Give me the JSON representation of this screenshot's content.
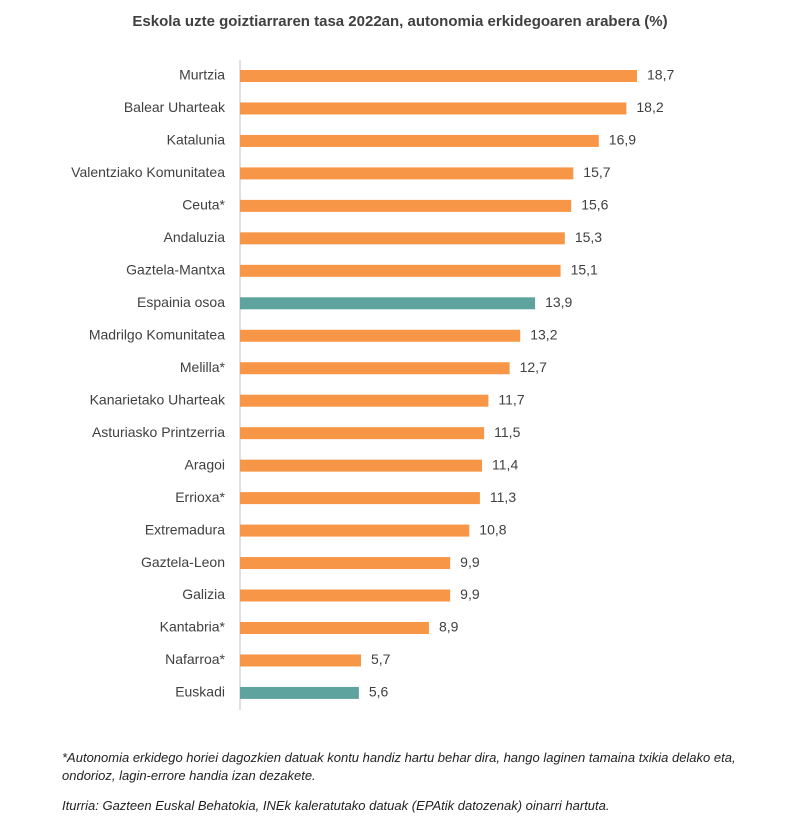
{
  "chart_data": {
    "type": "bar",
    "orientation": "horizontal",
    "title": "Eskola uzte goiztiarraren tasa 2022an, autonomia erkidegoaren arabera (%)",
    "categories": [
      "Murtzia",
      "Balear Uharteak",
      "Katalunia",
      "Valentziako Komunitatea",
      "Ceuta*",
      "Andaluzia",
      "Gaztela-Mantxa",
      "Espainia osoa",
      "Madrilgo Komunitatea",
      "Melilla*",
      "Kanarietako Uharteak",
      "Asturiasko Printzerria",
      "Aragoi",
      "Errioxa*",
      "Extremadura",
      "Gaztela-Leon",
      "Galizia",
      "Kantabria*",
      "Nafarroa*",
      "Euskadi"
    ],
    "values": [
      18.7,
      18.2,
      16.9,
      15.7,
      15.6,
      15.3,
      15.1,
      13.9,
      13.2,
      12.7,
      11.7,
      11.5,
      11.4,
      11.3,
      10.8,
      9.9,
      9.9,
      8.9,
      5.7,
      5.6
    ],
    "value_labels": [
      "18,7",
      "18,2",
      "16,9",
      "15,7",
      "15,6",
      "15,3",
      "15,1",
      "13,9",
      "13,2",
      "12,7",
      "11,7",
      "11,5",
      "11,4",
      "11,3",
      "10,8",
      "9,9",
      "9,9",
      "8,9",
      "5,7",
      "5,6"
    ],
    "colors": [
      "#f79646",
      "#f79646",
      "#f79646",
      "#f79646",
      "#f79646",
      "#f79646",
      "#f79646",
      "#5fa39f",
      "#f79646",
      "#f79646",
      "#f79646",
      "#f79646",
      "#f79646",
      "#f79646",
      "#f79646",
      "#f79646",
      "#f79646",
      "#f79646",
      "#f79646",
      "#5fa39f"
    ],
    "footnote": "*Autonomia erkidego horiei dagozkien datuak kontu handiz hartu behar dira, hango laginen tamaina txikia delako eta, ondorioz, lagin-errore handia izan dezakete.",
    "source": "Iturria: Gazteen Euskal Behatokia, INEk kaleratutako datuak (EPAtik datozenak) oinarri hartuta."
  }
}
